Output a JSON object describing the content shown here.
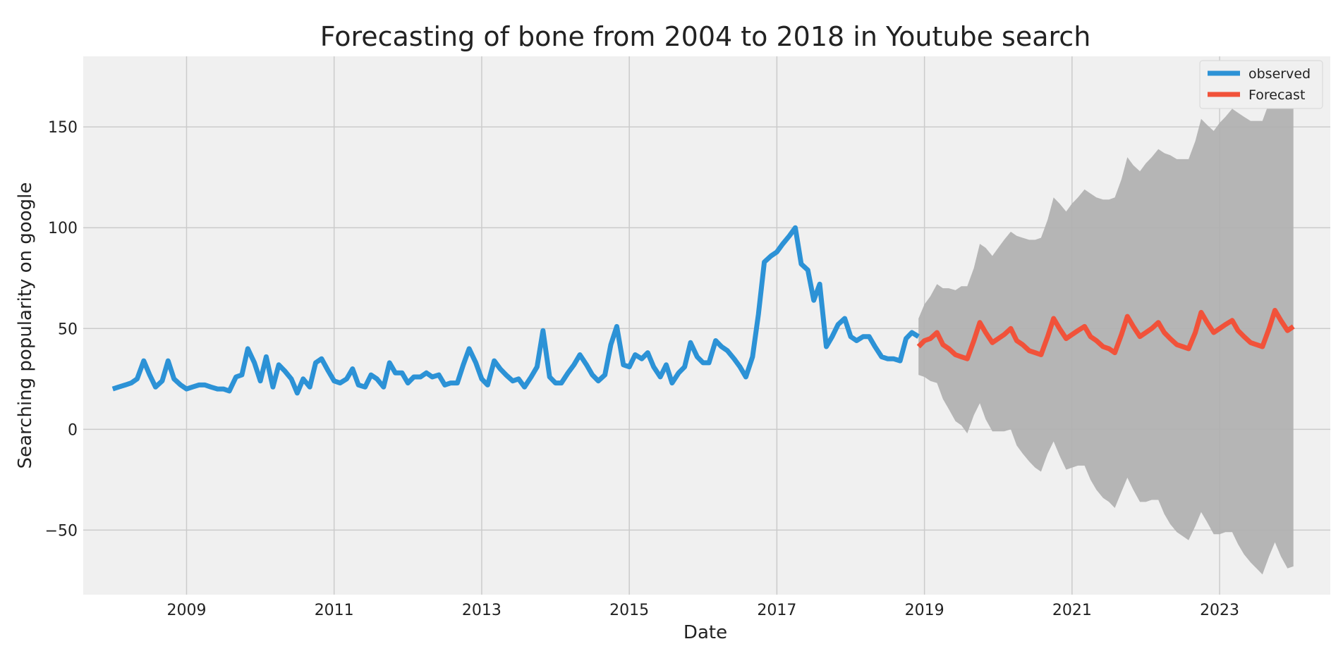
{
  "chart_data": {
    "type": "line",
    "title": "Forecasting of bone from 2004 to 2018 in Youtube search",
    "xlabel": "Date",
    "ylabel": "Searching popularity on google",
    "xlim": [
      2007.6,
      2024.5
    ],
    "ylim": [
      -82,
      185
    ],
    "x_ticks": [
      2009,
      2011,
      2013,
      2015,
      2017,
      2019,
      2021,
      2023
    ],
    "y_ticks": [
      150,
      100,
      50,
      0,
      -50
    ],
    "y_tick_labels": [
      "150",
      "100",
      "50",
      "0",
      "−50"
    ],
    "grid": true,
    "legend_position": "top-right",
    "colors": {
      "background": "#f0f0f0",
      "observed": "#2c92d6",
      "forecast": "#f1523a",
      "ci": "#b0b0b0"
    },
    "series": [
      {
        "name": "observed",
        "points": [
          [
            2008.0,
            20
          ],
          [
            2008.08,
            21
          ],
          [
            2008.17,
            22
          ],
          [
            2008.25,
            23
          ],
          [
            2008.33,
            25
          ],
          [
            2008.42,
            34
          ],
          [
            2008.5,
            27
          ],
          [
            2008.58,
            21
          ],
          [
            2008.67,
            24
          ],
          [
            2008.75,
            34
          ],
          [
            2008.83,
            25
          ],
          [
            2008.92,
            22
          ],
          [
            2009.0,
            20
          ],
          [
            2009.08,
            21
          ],
          [
            2009.17,
            22
          ],
          [
            2009.25,
            22
          ],
          [
            2009.33,
            21
          ],
          [
            2009.42,
            20
          ],
          [
            2009.5,
            20
          ],
          [
            2009.58,
            19
          ],
          [
            2009.67,
            26
          ],
          [
            2009.75,
            27
          ],
          [
            2009.83,
            40
          ],
          [
            2009.92,
            33
          ],
          [
            2010.0,
            24
          ],
          [
            2010.08,
            36
          ],
          [
            2010.17,
            21
          ],
          [
            2010.25,
            32
          ],
          [
            2010.33,
            29
          ],
          [
            2010.42,
            25
          ],
          [
            2010.5,
            18
          ],
          [
            2010.58,
            25
          ],
          [
            2010.67,
            21
          ],
          [
            2010.75,
            33
          ],
          [
            2010.83,
            35
          ],
          [
            2010.92,
            29
          ],
          [
            2011.0,
            24
          ],
          [
            2011.08,
            23
          ],
          [
            2011.17,
            25
          ],
          [
            2011.25,
            30
          ],
          [
            2011.33,
            22
          ],
          [
            2011.42,
            21
          ],
          [
            2011.5,
            27
          ],
          [
            2011.58,
            25
          ],
          [
            2011.67,
            21
          ],
          [
            2011.75,
            33
          ],
          [
            2011.83,
            28
          ],
          [
            2011.92,
            28
          ],
          [
            2012.0,
            23
          ],
          [
            2012.08,
            26
          ],
          [
            2012.17,
            26
          ],
          [
            2012.25,
            28
          ],
          [
            2012.33,
            26
          ],
          [
            2012.42,
            27
          ],
          [
            2012.5,
            22
          ],
          [
            2012.58,
            23
          ],
          [
            2012.67,
            23
          ],
          [
            2012.75,
            32
          ],
          [
            2012.83,
            40
          ],
          [
            2012.92,
            33
          ],
          [
            2013.0,
            25
          ],
          [
            2013.08,
            22
          ],
          [
            2013.17,
            34
          ],
          [
            2013.25,
            30
          ],
          [
            2013.33,
            27
          ],
          [
            2013.42,
            24
          ],
          [
            2013.5,
            25
          ],
          [
            2013.58,
            21
          ],
          [
            2013.67,
            26
          ],
          [
            2013.75,
            31
          ],
          [
            2013.83,
            49
          ],
          [
            2013.92,
            26
          ],
          [
            2014.0,
            23
          ],
          [
            2014.08,
            23
          ],
          [
            2014.17,
            28
          ],
          [
            2014.25,
            32
          ],
          [
            2014.33,
            37
          ],
          [
            2014.42,
            32
          ],
          [
            2014.5,
            27
          ],
          [
            2014.58,
            24
          ],
          [
            2014.67,
            27
          ],
          [
            2014.75,
            42
          ],
          [
            2014.83,
            51
          ],
          [
            2014.92,
            32
          ],
          [
            2015.0,
            31
          ],
          [
            2015.08,
            37
          ],
          [
            2015.17,
            35
          ],
          [
            2015.25,
            38
          ],
          [
            2015.33,
            31
          ],
          [
            2015.42,
            26
          ],
          [
            2015.5,
            32
          ],
          [
            2015.58,
            23
          ],
          [
            2015.67,
            28
          ],
          [
            2015.75,
            31
          ],
          [
            2015.83,
            43
          ],
          [
            2015.92,
            36
          ],
          [
            2016.0,
            33
          ],
          [
            2016.08,
            33
          ],
          [
            2016.17,
            44
          ],
          [
            2016.25,
            41
          ],
          [
            2016.33,
            39
          ],
          [
            2016.42,
            35
          ],
          [
            2016.5,
            31
          ],
          [
            2016.58,
            26
          ],
          [
            2016.67,
            36
          ],
          [
            2016.75,
            57
          ],
          [
            2016.83,
            83
          ],
          [
            2016.92,
            86
          ],
          [
            2017.0,
            88
          ],
          [
            2017.08,
            92
          ],
          [
            2017.17,
            96
          ],
          [
            2017.25,
            100
          ],
          [
            2017.33,
            82
          ],
          [
            2017.42,
            79
          ],
          [
            2017.5,
            64
          ],
          [
            2017.58,
            72
          ],
          [
            2017.67,
            41
          ],
          [
            2017.75,
            46
          ],
          [
            2017.83,
            52
          ],
          [
            2017.92,
            55
          ],
          [
            2018.0,
            46
          ],
          [
            2018.08,
            44
          ],
          [
            2018.17,
            46
          ],
          [
            2018.25,
            46
          ],
          [
            2018.33,
            41
          ],
          [
            2018.42,
            36
          ],
          [
            2018.5,
            35
          ],
          [
            2018.58,
            35
          ],
          [
            2018.67,
            34
          ],
          [
            2018.75,
            45
          ],
          [
            2018.83,
            48
          ],
          [
            2018.92,
            46
          ]
        ]
      },
      {
        "name": "Forecast",
        "points": [
          [
            2018.92,
            41
          ],
          [
            2019.0,
            44
          ],
          [
            2019.08,
            45
          ],
          [
            2019.17,
            48
          ],
          [
            2019.25,
            42
          ],
          [
            2019.33,
            40
          ],
          [
            2019.42,
            37
          ],
          [
            2019.5,
            36
          ],
          [
            2019.58,
            35
          ],
          [
            2019.67,
            44
          ],
          [
            2019.75,
            53
          ],
          [
            2019.83,
            48
          ],
          [
            2019.92,
            43
          ],
          [
            2020.0,
            45
          ],
          [
            2020.08,
            47
          ],
          [
            2020.17,
            50
          ],
          [
            2020.25,
            44
          ],
          [
            2020.33,
            42
          ],
          [
            2020.42,
            39
          ],
          [
            2020.5,
            38
          ],
          [
            2020.58,
            37
          ],
          [
            2020.67,
            46
          ],
          [
            2020.75,
            55
          ],
          [
            2020.83,
            50
          ],
          [
            2020.92,
            45
          ],
          [
            2021.0,
            47
          ],
          [
            2021.08,
            49
          ],
          [
            2021.17,
            51
          ],
          [
            2021.25,
            46
          ],
          [
            2021.33,
            44
          ],
          [
            2021.42,
            41
          ],
          [
            2021.5,
            40
          ],
          [
            2021.58,
            38
          ],
          [
            2021.67,
            47
          ],
          [
            2021.75,
            56
          ],
          [
            2021.83,
            51
          ],
          [
            2021.92,
            46
          ],
          [
            2022.0,
            48
          ],
          [
            2022.08,
            50
          ],
          [
            2022.17,
            53
          ],
          [
            2022.25,
            48
          ],
          [
            2022.33,
            45
          ],
          [
            2022.42,
            42
          ],
          [
            2022.5,
            41
          ],
          [
            2022.58,
            40
          ],
          [
            2022.67,
            48
          ],
          [
            2022.75,
            58
          ],
          [
            2022.83,
            53
          ],
          [
            2022.92,
            48
          ],
          [
            2023.0,
            50
          ],
          [
            2023.08,
            52
          ],
          [
            2023.17,
            54
          ],
          [
            2023.25,
            49
          ],
          [
            2023.33,
            46
          ],
          [
            2023.42,
            43
          ],
          [
            2023.5,
            42
          ],
          [
            2023.58,
            41
          ],
          [
            2023.67,
            50
          ],
          [
            2023.75,
            59
          ],
          [
            2023.83,
            54
          ],
          [
            2023.92,
            49
          ],
          [
            2024.0,
            51
          ]
        ]
      }
    ],
    "confidence_interval": {
      "x": [
        2018.92,
        2019.0,
        2019.08,
        2019.17,
        2019.25,
        2019.33,
        2019.42,
        2019.5,
        2019.58,
        2019.67,
        2019.75,
        2019.83,
        2019.92,
        2020.0,
        2020.08,
        2020.17,
        2020.25,
        2020.33,
        2020.42,
        2020.5,
        2020.58,
        2020.67,
        2020.75,
        2020.83,
        2020.92,
        2021.0,
        2021.08,
        2021.17,
        2021.25,
        2021.33,
        2021.42,
        2021.5,
        2021.58,
        2021.67,
        2021.75,
        2021.83,
        2021.92,
        2022.0,
        2022.08,
        2022.17,
        2022.25,
        2022.33,
        2022.42,
        2022.5,
        2022.58,
        2022.67,
        2022.75,
        2022.83,
        2022.92,
        2023.0,
        2023.08,
        2023.17,
        2023.25,
        2023.33,
        2023.42,
        2023.5,
        2023.58,
        2023.67,
        2023.75,
        2023.83,
        2023.92,
        2024.0
      ],
      "upper": [
        55,
        62,
        66,
        72,
        70,
        70,
        69,
        71,
        71,
        80,
        92,
        90,
        86,
        90,
        94,
        98,
        96,
        95,
        94,
        94,
        95,
        104,
        115,
        112,
        108,
        112,
        115,
        119,
        117,
        115,
        114,
        114,
        115,
        124,
        135,
        131,
        128,
        132,
        135,
        139,
        137,
        136,
        134,
        134,
        134,
        143,
        154,
        151,
        148,
        152,
        155,
        159,
        157,
        155,
        153,
        153,
        153,
        162,
        174,
        174,
        170,
        168
      ],
      "lower": [
        27,
        26,
        24,
        23,
        15,
        10,
        4,
        2,
        -2,
        7,
        13,
        5,
        -1,
        -1,
        -1,
        0,
        -8,
        -12,
        -16,
        -19,
        -21,
        -12,
        -6,
        -13,
        -20,
        -19,
        -18,
        -18,
        -25,
        -30,
        -34,
        -36,
        -39,
        -31,
        -24,
        -30,
        -36,
        -36,
        -35,
        -35,
        -42,
        -47,
        -51,
        -53,
        -55,
        -48,
        -41,
        -46,
        -52,
        -52,
        -51,
        -51,
        -57,
        -62,
        -66,
        -69,
        -72,
        -63,
        -56,
        -63,
        -69,
        -68
      ]
    }
  }
}
